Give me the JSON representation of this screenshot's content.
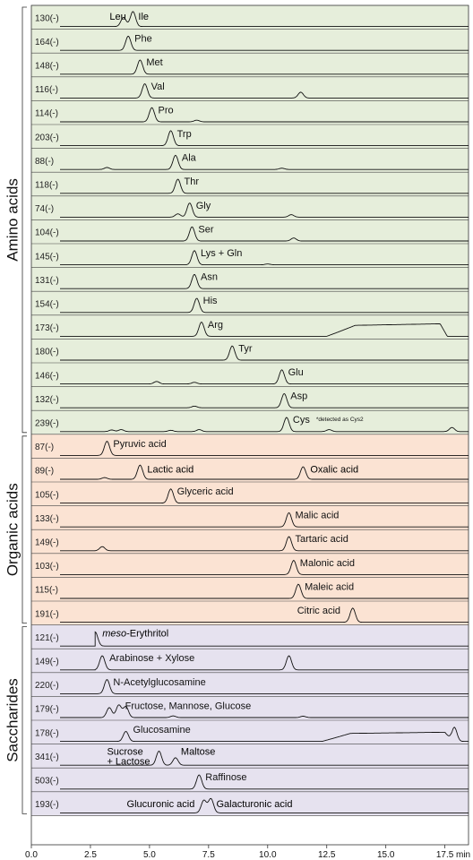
{
  "chart_data": {
    "type": "line",
    "title": "",
    "xlabel": "min",
    "xlim": [
      0,
      18.5
    ],
    "xticks": [
      "0.0",
      "2.5",
      "5.0",
      "7.5",
      "10.0",
      "12.5",
      "15.0",
      "17.5"
    ],
    "footnote": "*detected as Cys2",
    "groups": [
      {
        "name": "Amino acids",
        "color": "#e6eedb",
        "series": [
          {
            "mz": "130(-)",
            "label": "Leu",
            "label2": "Ile",
            "peaks": [
              [
                3.9,
                0.55
              ],
              [
                4.3,
                0.9
              ]
            ]
          },
          {
            "mz": "164(-)",
            "label": "Phe",
            "peaks": [
              [
                4.1,
                0.85
              ]
            ]
          },
          {
            "mz": "148(-)",
            "label": "Met",
            "peaks": [
              [
                4.6,
                0.85
              ]
            ]
          },
          {
            "mz": "116(-)",
            "label": "Val",
            "peaks": [
              [
                4.8,
                0.85
              ],
              [
                11.4,
                0.35
              ]
            ]
          },
          {
            "mz": "114(-)",
            "label": "Pro",
            "peaks": [
              [
                5.1,
                0.85
              ],
              [
                7.0,
                0.1
              ]
            ]
          },
          {
            "mz": "203(-)",
            "label": "Trp",
            "peaks": [
              [
                5.9,
                0.9
              ]
            ]
          },
          {
            "mz": "88(-)",
            "label": "Ala",
            "peaks": [
              [
                3.2,
                0.12
              ],
              [
                6.1,
                0.85
              ],
              [
                10.6,
                0.08
              ]
            ]
          },
          {
            "mz": "118(-)",
            "label": "Thr",
            "peaks": [
              [
                6.2,
                0.85
              ]
            ]
          },
          {
            "mz": "74(-)",
            "label": "Gly",
            "peaks": [
              [
                6.2,
                0.2
              ],
              [
                6.7,
                0.85
              ],
              [
                11.0,
                0.15
              ]
            ]
          },
          {
            "mz": "104(-)",
            "label": "Ser",
            "peaks": [
              [
                6.8,
                0.85
              ],
              [
                11.1,
                0.18
              ]
            ]
          },
          {
            "mz": "145(-)",
            "label": "Lys + Gln",
            "peaks": [
              [
                6.9,
                0.85
              ],
              [
                10.0,
                0.05
              ]
            ]
          },
          {
            "mz": "131(-)",
            "label": "Asn",
            "peaks": [
              [
                6.9,
                0.85
              ]
            ]
          },
          {
            "mz": "154(-)",
            "label": "His",
            "peaks": [
              [
                7.0,
                0.85
              ]
            ]
          },
          {
            "mz": "173(-)",
            "label": "Arg",
            "peaks": [
              [
                7.2,
                0.85
              ]
            ],
            "hump": [
              13.0,
              17.3,
              0.75
            ]
          },
          {
            "mz": "180(-)",
            "label": "Tyr",
            "peaks": [
              [
                8.5,
                0.85
              ]
            ]
          },
          {
            "mz": "146(-)",
            "label": "Glu",
            "peaks": [
              [
                5.3,
                0.15
              ],
              [
                6.9,
                0.1
              ],
              [
                10.6,
                0.85
              ]
            ]
          },
          {
            "mz": "132(-)",
            "label": "Asp",
            "peaks": [
              [
                6.9,
                0.1
              ],
              [
                10.7,
                0.85
              ]
            ]
          },
          {
            "mz": "239(-)",
            "label": "Cys",
            "footnote": true,
            "peaks": [
              [
                1.4,
                0.08
              ],
              [
                3.4,
                0.1
              ],
              [
                3.8,
                0.12
              ],
              [
                5.9,
                0.08
              ],
              [
                7.1,
                0.12
              ],
              [
                10.8,
                0.85
              ],
              [
                12.6,
                0.12
              ],
              [
                17.8,
                0.25
              ]
            ]
          }
        ]
      },
      {
        "name": "Organic acids",
        "color": "#fbe3d3",
        "series": [
          {
            "mz": "87(-)",
            "label": "Pyruvic acid",
            "peaks": [
              [
                3.2,
                0.85
              ]
            ]
          },
          {
            "mz": "89(-)",
            "label": "Lactic acid",
            "label2": "Oxalic acid",
            "peaks": [
              [
                3.1,
                0.1
              ],
              [
                4.6,
                0.85
              ],
              [
                11.5,
                0.75
              ]
            ]
          },
          {
            "mz": "105(-)",
            "label": "Glyceric acid",
            "peaks": [
              [
                5.9,
                0.85
              ]
            ]
          },
          {
            "mz": "133(-)",
            "label": "Malic acid",
            "peaks": [
              [
                10.9,
                0.85
              ]
            ]
          },
          {
            "mz": "149(-)",
            "label": "Tartaric acid",
            "peaks": [
              [
                3.0,
                0.25
              ],
              [
                10.9,
                0.85
              ]
            ]
          },
          {
            "mz": "103(-)",
            "label": "Malonic acid",
            "peaks": [
              [
                11.1,
                0.85
              ]
            ]
          },
          {
            "mz": "115(-)",
            "label": "Maleic acid",
            "peaks": [
              [
                11.3,
                0.85
              ]
            ]
          },
          {
            "mz": "191(-)",
            "label": "Citric acid",
            "peaks": [
              [
                13.6,
                0.85
              ]
            ]
          }
        ]
      },
      {
        "name": "Saccharides",
        "color": "#e6e2ef",
        "series": [
          {
            "mz": "121(-)",
            "label": "meso-Erythritol",
            "label_italic_prefix": "meso",
            "peaks": [
              [
                2.7,
                0.85
              ]
            ]
          },
          {
            "mz": "149(-)",
            "label": "Arabinose + Xylose",
            "peaks": [
              [
                3.0,
                0.85
              ],
              [
                10.9,
                0.85
              ]
            ]
          },
          {
            "mz": "220(-)",
            "label": "N-Acetylglucosamine",
            "peaks": [
              [
                3.2,
                0.85
              ]
            ]
          },
          {
            "mz": "179(-)",
            "label": "Fructose, Mannose, Glucose",
            "peaks": [
              [
                3.3,
                0.6
              ],
              [
                3.7,
                0.75
              ],
              [
                4.0,
                0.65
              ],
              [
                6.0,
                0.1
              ],
              [
                11.5,
                0.08
              ]
            ]
          },
          {
            "mz": "178(-)",
            "label": "Glucosamine",
            "peaks": [
              [
                4.0,
                0.6
              ],
              [
                17.9,
                0.85
              ]
            ],
            "hump": [
              12.8,
              17.5,
              0.55
            ]
          },
          {
            "mz": "341(-)",
            "label": "Sucrose",
            "label2": "+ Lactose",
            "label3": "Maltose",
            "peaks": [
              [
                5.4,
                0.85
              ],
              [
                6.1,
                0.45
              ]
            ]
          },
          {
            "mz": "503(-)",
            "label": "Raffinose",
            "peaks": [
              [
                7.1,
                0.85
              ]
            ]
          },
          {
            "mz": "193(-)",
            "label": "Glucuronic acid",
            "label2": "Galacturonic acid",
            "peaks": [
              [
                7.3,
                0.75
              ],
              [
                7.6,
                0.85
              ]
            ]
          }
        ]
      }
    ]
  }
}
